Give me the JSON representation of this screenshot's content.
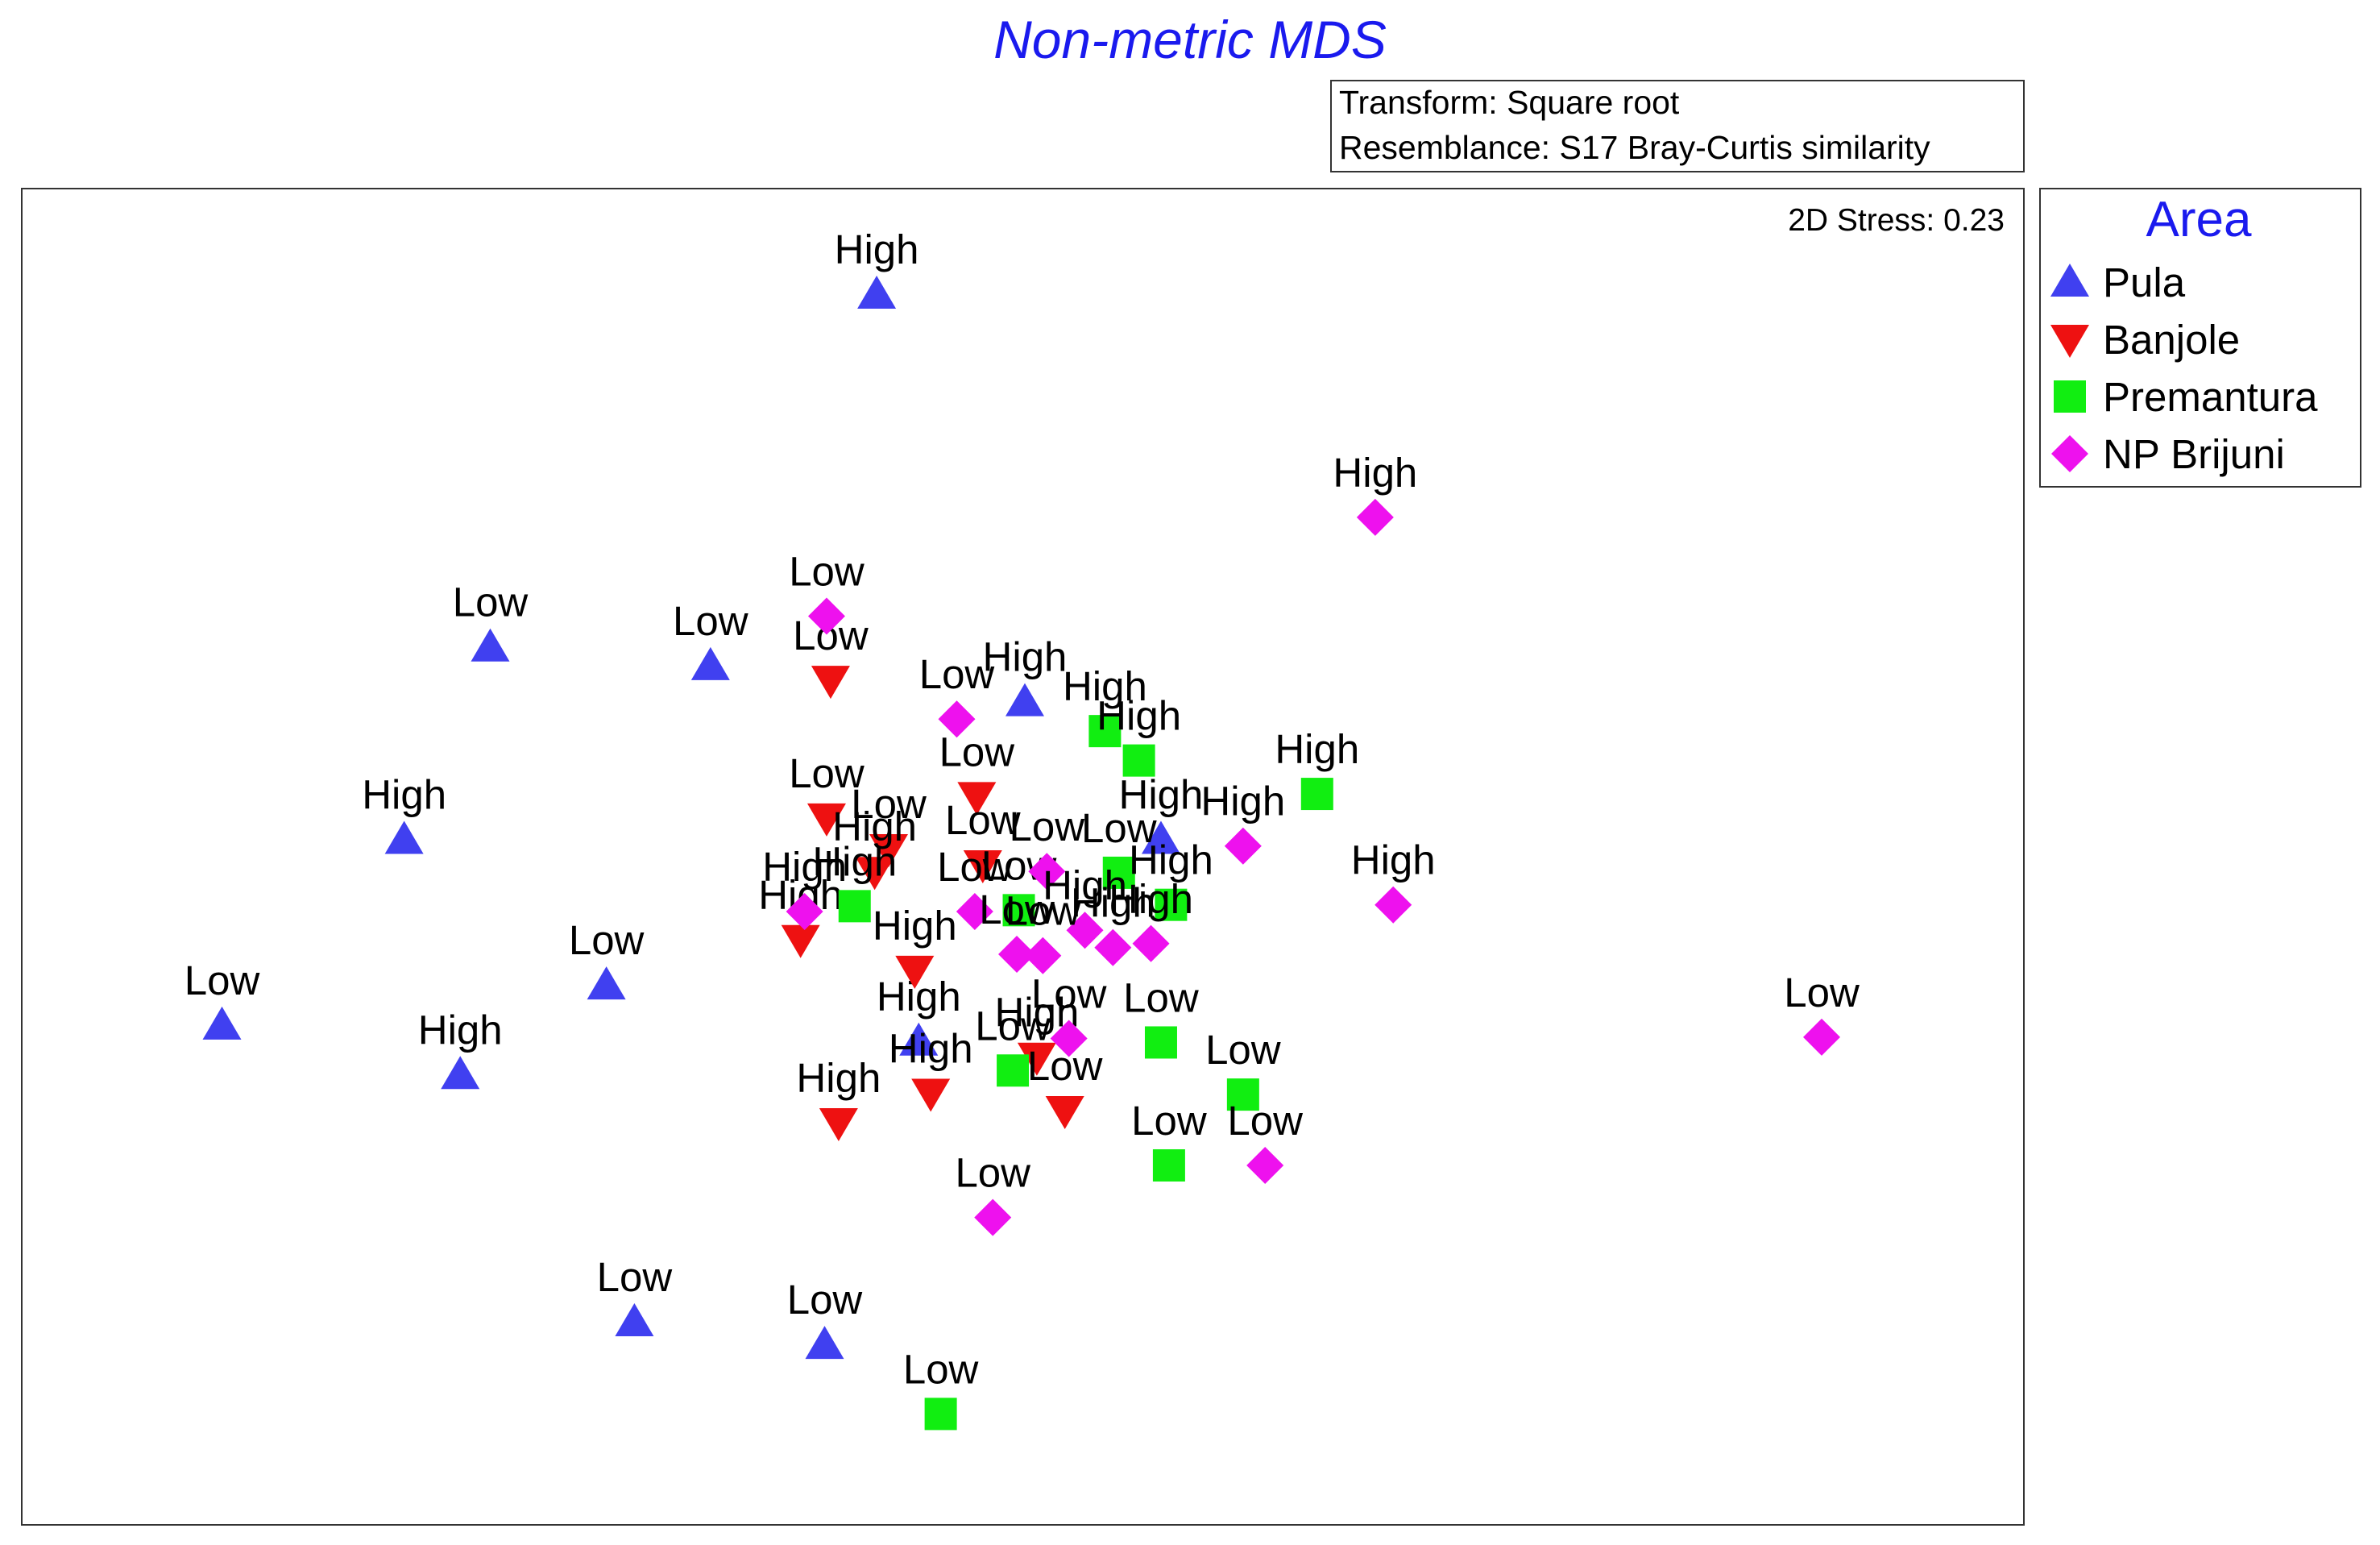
{
  "chart_data": {
    "type": "scatter",
    "title": "Non-metric MDS",
    "info": [
      "Transform: Square root",
      "Resemblance: S17 Bray-Curtis similarity"
    ],
    "stress_label": "2D Stress: 0.23",
    "xlabel": "",
    "ylabel": "",
    "xlim": [
      0,
      1000
    ],
    "ylim": [
      0,
      1000
    ],
    "grid": false,
    "legend_position": "right",
    "legend": {
      "title": "Area",
      "entries": [
        "Pula",
        "Banjole",
        "Premantura",
        "NP Brijuni"
      ]
    },
    "series": [
      {
        "name": "Pula",
        "marker": "triangle-up",
        "color": "#4040f0",
        "points": [
          {
            "x": 427,
            "y": 921,
            "label": "High"
          },
          {
            "x": 234,
            "y": 657,
            "label": "Low"
          },
          {
            "x": 344,
            "y": 643,
            "label": "Low"
          },
          {
            "x": 191,
            "y": 513,
            "label": "High"
          },
          {
            "x": 100,
            "y": 374,
            "label": "Low"
          },
          {
            "x": 292,
            "y": 404,
            "label": "Low"
          },
          {
            "x": 219,
            "y": 337,
            "label": "High"
          },
          {
            "x": 306,
            "y": 152,
            "label": "Low"
          },
          {
            "x": 401,
            "y": 135,
            "label": "Low"
          },
          {
            "x": 501,
            "y": 616,
            "label": "High"
          },
          {
            "x": 569,
            "y": 513,
            "label": "High"
          },
          {
            "x": 448,
            "y": 362,
            "label": "High"
          }
        ]
      },
      {
        "name": "Banjole",
        "marker": "triangle-down",
        "color": "#ee1111",
        "points": [
          {
            "x": 404,
            "y": 632,
            "label": "Low"
          },
          {
            "x": 402,
            "y": 529,
            "label": "Low"
          },
          {
            "x": 477,
            "y": 545,
            "label": "Low"
          },
          {
            "x": 433,
            "y": 506,
            "label": "Low"
          },
          {
            "x": 426,
            "y": 489,
            "label": "High"
          },
          {
            "x": 480,
            "y": 494,
            "label": "Low"
          },
          {
            "x": 389,
            "y": 438,
            "label": "High"
          },
          {
            "x": 446,
            "y": 415,
            "label": "High"
          },
          {
            "x": 408,
            "y": 301,
            "label": "High"
          },
          {
            "x": 454,
            "y": 323,
            "label": "High"
          },
          {
            "x": 507,
            "y": 350,
            "label": "High"
          },
          {
            "x": 521,
            "y": 310,
            "label": "Low"
          }
        ]
      },
      {
        "name": "Premantura",
        "marker": "square",
        "color": "#11ee11",
        "points": [
          {
            "x": 541,
            "y": 594,
            "label": "High"
          },
          {
            "x": 558,
            "y": 572,
            "label": "High"
          },
          {
            "x": 647,
            "y": 547,
            "label": "High"
          },
          {
            "x": 416,
            "y": 463,
            "label": "High"
          },
          {
            "x": 498,
            "y": 460,
            "label": "Low"
          },
          {
            "x": 548,
            "y": 488,
            "label": "Low"
          },
          {
            "x": 574,
            "y": 464,
            "label": "High"
          },
          {
            "x": 569,
            "y": 361,
            "label": "Low"
          },
          {
            "x": 610,
            "y": 322,
            "label": "Low"
          },
          {
            "x": 495,
            "y": 340,
            "label": "Low"
          },
          {
            "x": 573,
            "y": 269,
            "label": "Low"
          },
          {
            "x": 459,
            "y": 83,
            "label": "Low"
          }
        ]
      },
      {
        "name": "NP Brijuni",
        "marker": "diamond",
        "color": "#ee11ee",
        "points": [
          {
            "x": 676,
            "y": 754,
            "label": "High"
          },
          {
            "x": 402,
            "y": 680,
            "label": "Low"
          },
          {
            "x": 467,
            "y": 603,
            "label": "Low"
          },
          {
            "x": 610,
            "y": 508,
            "label": "High"
          },
          {
            "x": 685,
            "y": 464,
            "label": "High"
          },
          {
            "x": 391,
            "y": 459,
            "label": "High"
          },
          {
            "x": 476,
            "y": 459,
            "label": "Low"
          },
          {
            "x": 512,
            "y": 489,
            "label": "Low"
          },
          {
            "x": 531,
            "y": 445,
            "label": "High"
          },
          {
            "x": 497,
            "y": 427,
            "label": "Low"
          },
          {
            "x": 510,
            "y": 426,
            "label": "Low"
          },
          {
            "x": 545,
            "y": 432,
            "label": "High"
          },
          {
            "x": 564,
            "y": 435,
            "label": "High"
          },
          {
            "x": 523,
            "y": 364,
            "label": "Low"
          },
          {
            "x": 621,
            "y": 269,
            "label": "Low"
          },
          {
            "x": 485,
            "y": 230,
            "label": "Low"
          },
          {
            "x": 899,
            "y": 365,
            "label": "Low"
          }
        ]
      }
    ]
  }
}
